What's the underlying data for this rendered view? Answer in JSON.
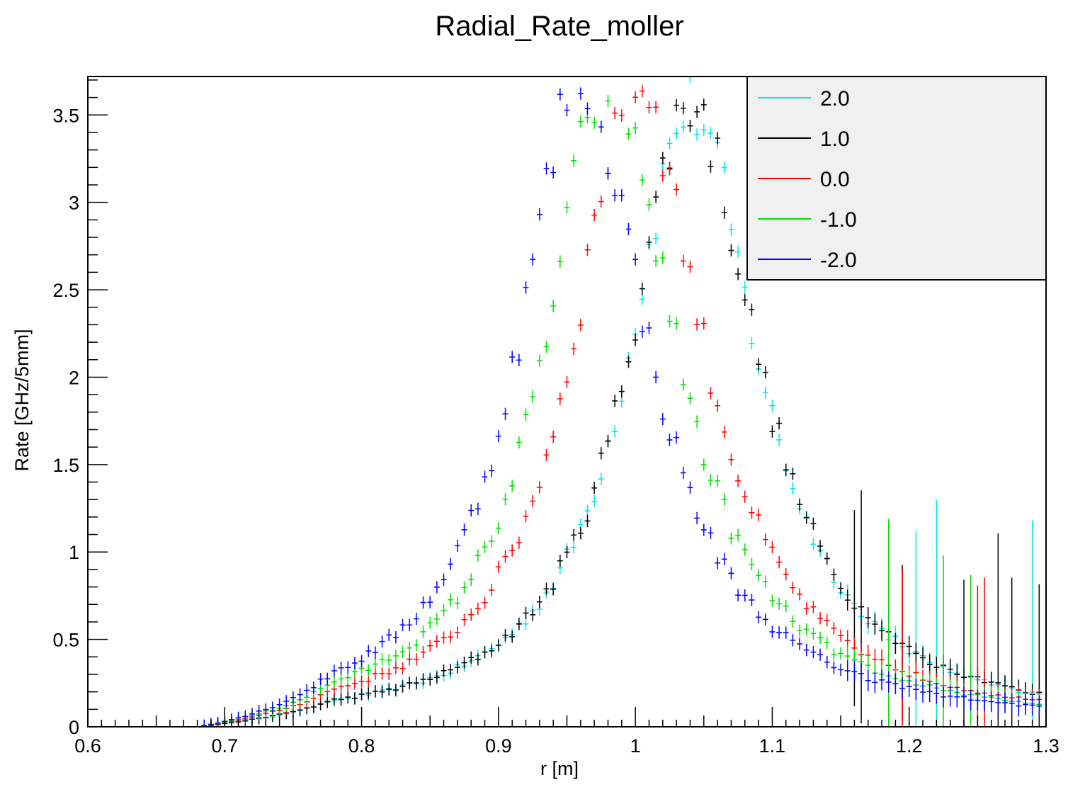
{
  "chart_data": {
    "type": "scatter",
    "title": "Radial_Rate_moller",
    "xlabel": "r [m]",
    "ylabel": "Rate [GHz/5mm]",
    "xlim": [
      0.6,
      1.3
    ],
    "ylim": [
      0,
      3.72
    ],
    "x_ticks": [
      "0.6",
      "0.7",
      "0.8",
      "0.9",
      "1",
      "1.1",
      "1.2",
      "1.3"
    ],
    "y_ticks": [
      "0",
      "0.5",
      "1",
      "1.5",
      "2",
      "2.5",
      "3",
      "3.5"
    ],
    "grid": false,
    "legend_position": "top-right",
    "bin_width": 0.005,
    "series": [
      {
        "name": "2.0",
        "color": "#00e5ee",
        "peak_r": 1.04,
        "peak_rate": 3.55
      },
      {
        "name": "1.0",
        "color": "#000000",
        "peak_r": 1.04,
        "peak_rate": 3.58
      },
      {
        "name": "0.0",
        "color": "#ff0000",
        "peak_r": 1.0,
        "peak_rate": 3.72
      },
      {
        "name": "-1.0",
        "color": "#00e000",
        "peak_r": 0.98,
        "peak_rate": 3.72
      },
      {
        "name": "-2.0",
        "color": "#0000ff",
        "peak_r": 0.96,
        "peak_rate": 3.72
      }
    ]
  }
}
